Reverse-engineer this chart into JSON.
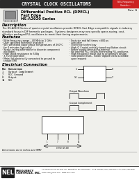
{
  "title": "CRYSTAL CLOCK OSCILLATORS",
  "title_bg": "#2b2b2b",
  "title_color": "#ffffff",
  "tag_bg": "#cc2222",
  "rev_text": "Rev: G",
  "product_line1": "Differential Positive ECL (DPECL)",
  "product_line2": "Fast Edge",
  "product_line3": "HS-A2920 Series",
  "desc_title": "Description",
  "features_title": "Features",
  "elec_title": "Electrical Connection",
  "elec_pins": [
    [
      "Pin",
      "Connection"
    ],
    [
      "1",
      "Output Complement"
    ],
    [
      "7",
      "VCC Ground"
    ],
    [
      "8",
      "Output"
    ],
    [
      "14",
      "VCC"
    ]
  ],
  "dim_note": "Dimensions are in inches and (MM)",
  "footer_bg": "#1a1a1a",
  "footer_logo": "NEL",
  "footer_company1": "FREQUENCY",
  "footer_company2": "CONTROLS, INC.",
  "footer_address": "217 Devon Drive, P.O. Box 457, Burlington, WI 53105-0457   In La Grange: (262) 763-3591  FAX: (262) 763-3569",
  "footer_email": "Email: info@nelfc.com   www.nelfc.com",
  "bg_color": "#f0f0ec",
  "page_bg": "#ffffff",
  "left_features": [
    "Wide frequency range—40 MHz to 1 GHz",
    "User specified tolerance available",
    "Will withstand vapor phase temperatures of 260°C",
    "  for 4 minutes (typically)",
    "Space-saving alternative to discrete component",
    "  oscillators",
    "High shock resistance to 500g",
    "3.3 volt operation",
    "Metal lid electrically connected to ground to",
    "  reduce EMI"
  ],
  "right_features": [
    "Fast rise and fall times <600 ps",
    "Low Jitter",
    "Overdrive technology",
    "High-Q Crystal actively tuned oscillation circuit",
    "Power supply decoupling internal",
    "No internal PLL circuits eliminating PLL problems",
    "High frequency made due to proprietary design",
    "Gold plated leads - Solder dipped leads available",
    "  upon request"
  ]
}
